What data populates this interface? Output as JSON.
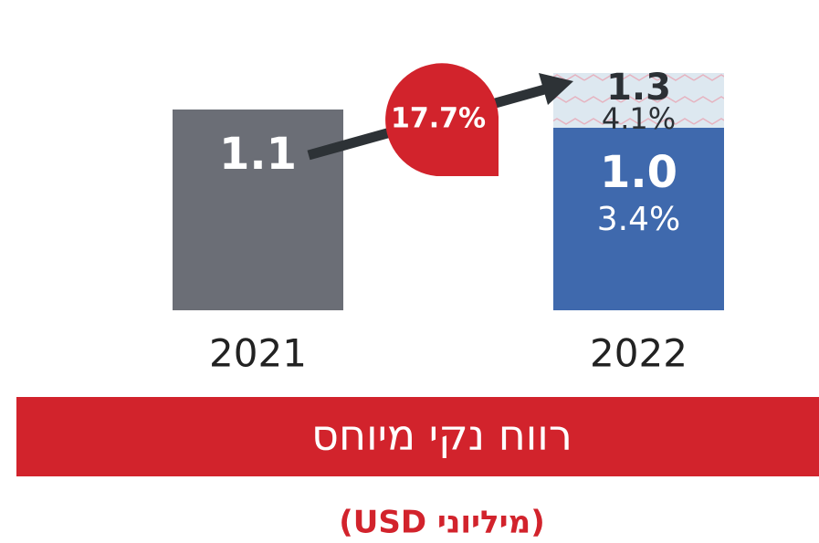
{
  "chart_data": {
    "type": "bar",
    "title": "רווח נקי מיוחס",
    "subtitle": "(מיליוני USD)",
    "categories": [
      "2021",
      "2022"
    ],
    "values": [
      1.1,
      1.3
    ],
    "colors": [
      "#6b6e76",
      "#dde8f0"
    ],
    "margins": [
      null,
      4.1
    ],
    "margin_labels": [
      null,
      "4.1%"
    ],
    "base_segment": {
      "values": [
        null,
        1.0
      ],
      "value_labels": [
        null,
        "1.0"
      ],
      "color": "#3f69ad",
      "margins": [
        null,
        3.4
      ],
      "margin_labels": [
        null,
        "3.4%"
      ]
    },
    "growth": 17.7,
    "growth_label": "17.7%"
  }
}
